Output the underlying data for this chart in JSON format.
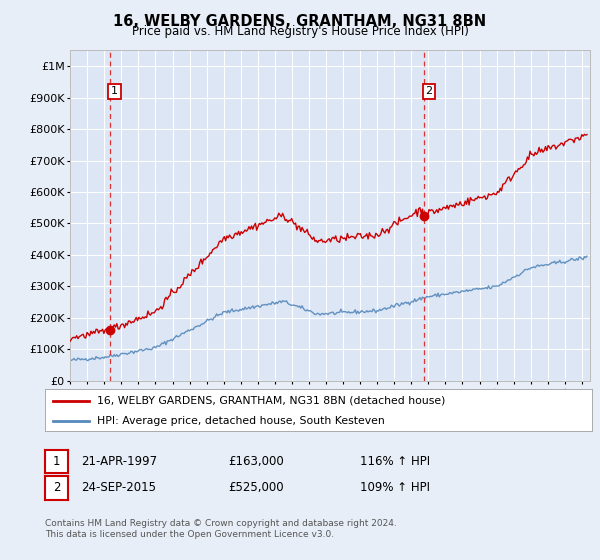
{
  "title": "16, WELBY GARDENS, GRANTHAM, NG31 8BN",
  "subtitle": "Price paid vs. HM Land Registry's House Price Index (HPI)",
  "background_color": "#e8eef7",
  "plot_bg_color": "#dce6f5",
  "xlim": [
    1995,
    2025.5
  ],
  "ylim": [
    0,
    1050000
  ],
  "yticks": [
    0,
    100000,
    200000,
    300000,
    400000,
    500000,
    600000,
    700000,
    800000,
    900000,
    1000000
  ],
  "ytick_labels": [
    "£0",
    "£100K",
    "£200K",
    "£300K",
    "£400K",
    "£500K",
    "£600K",
    "£700K",
    "£800K",
    "£900K",
    "£1M"
  ],
  "xticks": [
    1995,
    1996,
    1997,
    1998,
    1999,
    2000,
    2001,
    2002,
    2003,
    2004,
    2005,
    2006,
    2007,
    2008,
    2009,
    2010,
    2011,
    2012,
    2013,
    2014,
    2015,
    2016,
    2017,
    2018,
    2019,
    2020,
    2021,
    2022,
    2023,
    2024,
    2025
  ],
  "sale1_x": 1997.31,
  "sale1_y": 163000,
  "sale2_x": 2015.73,
  "sale2_y": 525000,
  "legend_line1": "16, WELBY GARDENS, GRANTHAM, NG31 8BN (detached house)",
  "legend_line2": "HPI: Average price, detached house, South Kesteven",
  "table_row1": [
    "1",
    "21-APR-1997",
    "£163,000",
    "116% ↑ HPI"
  ],
  "table_row2": [
    "2",
    "24-SEP-2015",
    "£525,000",
    "109% ↑ HPI"
  ],
  "footer1": "Contains HM Land Registry data © Crown copyright and database right 2024.",
  "footer2": "This data is licensed under the Open Government Licence v3.0.",
  "red_line_color": "#cc0000",
  "blue_line_color": "#5588bb",
  "vline_color": "#dd3333",
  "grid_color": "#ffffff"
}
